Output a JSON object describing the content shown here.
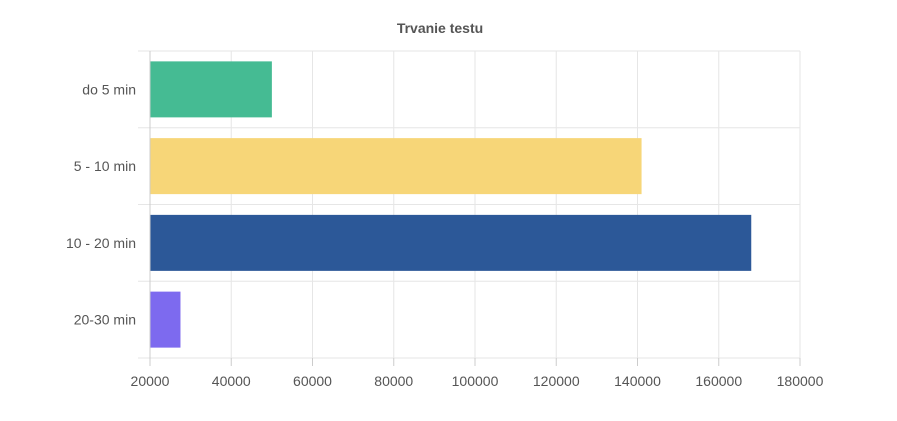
{
  "chart_data": {
    "type": "bar",
    "orientation": "horizontal",
    "title": "Trvanie testu",
    "categories": [
      "do 5 min",
      "5 - 10 min",
      "10 - 20 min",
      "20-30 min"
    ],
    "values": [
      50000,
      141000,
      168000,
      27500
    ],
    "colors": [
      "#45bb93",
      "#f7d678",
      "#2c5898",
      "#7d6aef"
    ],
    "xlim": [
      20000,
      180000
    ],
    "x_ticks": [
      "20000",
      "40000",
      "60000",
      "80000",
      "100000",
      "120000",
      "140000",
      "160000",
      "180000"
    ],
    "xlabel": "",
    "ylabel": "",
    "grid": true,
    "legend": "none"
  }
}
